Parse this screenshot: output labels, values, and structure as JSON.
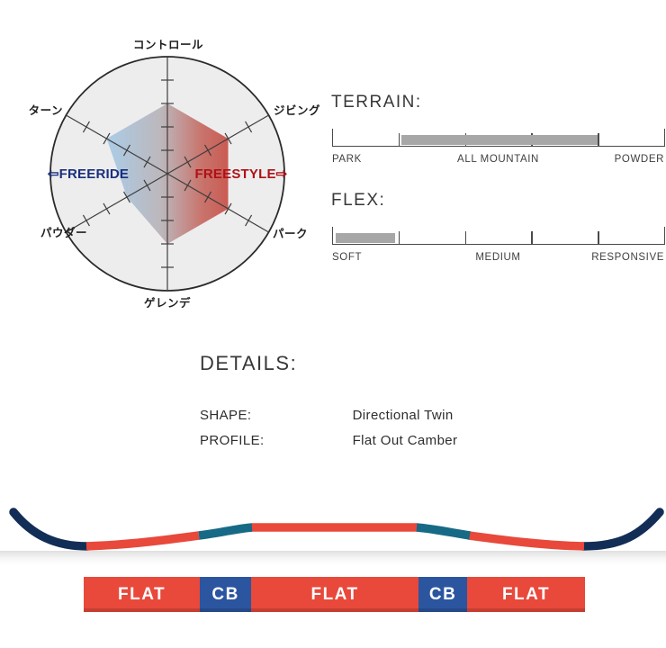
{
  "colors": {
    "board_red": "#E8493B",
    "cb_blue": "#2C55A0",
    "tip_navy": "#132E56",
    "camber_teal": "#176A86",
    "freeride_blue": "#1B2F7D",
    "freestyle_red": "#AE1117",
    "radar_fill_blue": "#9CC5E5",
    "radar_fill_mid": "#B2ABB0",
    "radar_fill_red": "#C23B31",
    "circle_fill": "#EDEDEE",
    "circle_stroke": "#2B2B2B",
    "axis_gray": "#3E3E3E",
    "ruler_bar_gray": "#A7A7A7",
    "ruler_line": "#4A4A4A"
  },
  "chart_data": [
    {
      "type": "radar",
      "scale_max": 5,
      "ring_ticks": [
        1,
        2,
        3,
        4
      ],
      "axes": [
        {
          "label": "コントロール",
          "value": 3
        },
        {
          "label": "ジビング",
          "value": 3
        },
        {
          "label": "パーク",
          "value": 3
        },
        {
          "label": "ゲレンデ",
          "value": 3
        },
        {
          "label": "パウダー",
          "value": 2
        },
        {
          "label": "ターン",
          "value": 3
        }
      ],
      "annotations": {
        "freeride": "⇦FREERIDE",
        "freestyle": "FREESTYLE⇨"
      }
    },
    {
      "type": "scale",
      "title": "TERRAIN:",
      "tick_count": 6,
      "labels": [
        "PARK",
        "ALL MOUNTAIN",
        "POWDER"
      ],
      "bar_start_pct": 21,
      "bar_end_pct": 80
    },
    {
      "type": "scale",
      "title": "FLEX:",
      "tick_count": 6,
      "labels": [
        "SOFT",
        "MEDIUM",
        "RESPONSIVE"
      ],
      "bar_start_pct": 1,
      "bar_end_pct": 19
    },
    {
      "type": "profile-bar",
      "segments": [
        {
          "label": "FLAT",
          "kind": "flat",
          "width_pct": 23.2
        },
        {
          "label": "CB",
          "kind": "camber",
          "width_pct": 10.2
        },
        {
          "label": "FLAT",
          "kind": "flat",
          "width_pct": 33.4
        },
        {
          "label": "CB",
          "kind": "camber",
          "width_pct": 9.7
        },
        {
          "label": "FLAT",
          "kind": "flat",
          "width_pct": 23.5
        }
      ]
    }
  ],
  "details": {
    "title": "DETAILS:",
    "rows": [
      {
        "label": "SHAPE:",
        "value": "Directional Twin"
      },
      {
        "label": "PROFILE:",
        "value": "Flat Out Camber"
      }
    ]
  }
}
